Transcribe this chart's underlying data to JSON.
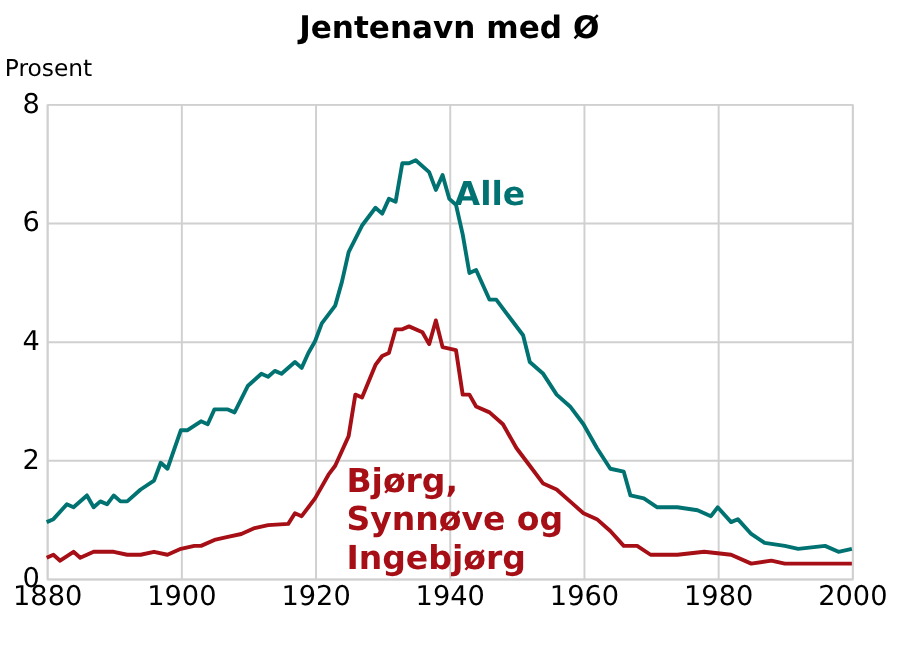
{
  "chart_data": {
    "type": "line",
    "title": "Jentenavn med Ø",
    "ylabel": "Prosent",
    "xlim": [
      1880,
      2000
    ],
    "xticks": [
      1880,
      1900,
      1920,
      1940,
      1960,
      1980,
      2000
    ],
    "ylim": [
      0,
      8
    ],
    "yticks": [
      0,
      2,
      4,
      6,
      8
    ],
    "grid": true,
    "legend": false,
    "line_style": "solid",
    "marker": "none",
    "series": [
      {
        "name": "Alle",
        "color": "#007272",
        "x": [
          1880,
          1881,
          1883,
          1884,
          1886,
          1887,
          1888,
          1889,
          1890,
          1891,
          1892,
          1894,
          1896,
          1897,
          1898,
          1900,
          1901,
          1903,
          1904,
          1905,
          1907,
          1908,
          1910,
          1912,
          1913,
          1914,
          1915,
          1917,
          1918,
          1919,
          1920,
          1921,
          1923,
          1924,
          1925,
          1927,
          1929,
          1930,
          1931,
          1932,
          1933,
          1934,
          1935,
          1937,
          1938,
          1939,
          1940,
          1941,
          1942,
          1943,
          1944,
          1946,
          1947,
          1949,
          1951,
          1952,
          1954,
          1956,
          1958,
          1960,
          1962,
          1964,
          1966,
          1967,
          1969,
          1971,
          1974,
          1977,
          1979,
          1980,
          1982,
          1983,
          1985,
          1987,
          1990,
          1992,
          1996,
          1998,
          2000
        ],
        "values": [
          0.95,
          1.0,
          1.25,
          1.2,
          1.4,
          1.2,
          1.3,
          1.25,
          1.4,
          1.3,
          1.3,
          1.5,
          1.65,
          1.95,
          1.85,
          2.5,
          2.5,
          2.65,
          2.6,
          2.85,
          2.85,
          2.8,
          3.25,
          3.45,
          3.4,
          3.5,
          3.45,
          3.65,
          3.55,
          3.8,
          4.0,
          4.3,
          4.6,
          5.0,
          5.5,
          5.95,
          6.25,
          6.15,
          6.4,
          6.35,
          7.0,
          7.0,
          7.05,
          6.85,
          6.55,
          6.8,
          6.4,
          6.3,
          5.8,
          5.15,
          5.2,
          4.7,
          4.7,
          4.4,
          4.1,
          3.65,
          3.45,
          3.1,
          2.9,
          2.6,
          2.2,
          1.85,
          1.8,
          1.4,
          1.35,
          1.2,
          1.2,
          1.15,
          1.05,
          1.2,
          0.95,
          1.0,
          0.75,
          0.6,
          0.55,
          0.5,
          0.55,
          0.45,
          0.5
        ]
      },
      {
        "name": "Bjørg,\nSynnøve og\nIngebjørg",
        "color": "#a50f15",
        "x": [
          1880,
          1881,
          1882,
          1884,
          1885,
          1887,
          1890,
          1892,
          1894,
          1896,
          1898,
          1900,
          1902,
          1903,
          1905,
          1907,
          1909,
          1911,
          1913,
          1916,
          1917,
          1918,
          1920,
          1922,
          1923,
          1925,
          1926,
          1927,
          1929,
          1930,
          1931,
          1932,
          1933,
          1934,
          1936,
          1937,
          1938,
          1939,
          1941,
          1942,
          1943,
          1944,
          1946,
          1948,
          1950,
          1952,
          1954,
          1956,
          1958,
          1960,
          1962,
          1964,
          1966,
          1968,
          1970,
          1974,
          1978,
          1982,
          1985,
          1988,
          1990,
          1995,
          2000
        ],
        "values": [
          0.35,
          0.4,
          0.3,
          0.45,
          0.35,
          0.45,
          0.45,
          0.4,
          0.4,
          0.45,
          0.4,
          0.5,
          0.55,
          0.55,
          0.65,
          0.7,
          0.75,
          0.85,
          0.9,
          0.92,
          1.1,
          1.05,
          1.35,
          1.75,
          1.9,
          2.4,
          3.1,
          3.05,
          3.6,
          3.75,
          3.8,
          4.2,
          4.2,
          4.25,
          4.15,
          3.95,
          4.35,
          3.9,
          3.85,
          3.1,
          3.1,
          2.9,
          2.8,
          2.6,
          2.2,
          1.9,
          1.6,
          1.5,
          1.3,
          1.1,
          1.0,
          0.8,
          0.55,
          0.55,
          0.4,
          0.4,
          0.45,
          0.4,
          0.25,
          0.3,
          0.25,
          0.25,
          0.25
        ]
      }
    ]
  }
}
